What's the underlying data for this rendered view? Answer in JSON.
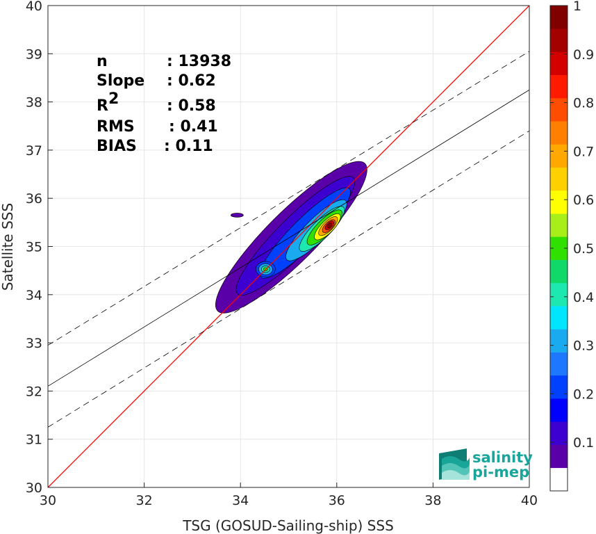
{
  "chart_data": {
    "type": "heatmap",
    "title": "",
    "xlabel": "TSG (GOSUD-Sailing-ship) SSS",
    "ylabel": "Satellite SSS",
    "xlim": [
      30,
      40
    ],
    "ylim": [
      30,
      40
    ],
    "xticks": [
      "30",
      "32",
      "34",
      "36",
      "38",
      "40"
    ],
    "yticks": [
      "30",
      "31",
      "32",
      "33",
      "34",
      "35",
      "36",
      "37",
      "38",
      "39",
      "40"
    ],
    "grid": true,
    "lines": [
      {
        "name": "1:1",
        "color": "#ff0000",
        "style": "solid",
        "points": [
          [
            30,
            30
          ],
          [
            40,
            40
          ]
        ]
      },
      {
        "name": "fit",
        "color": "#000000",
        "style": "solid",
        "points": [
          [
            30,
            32.1
          ],
          [
            40,
            38.25
          ]
        ]
      },
      {
        "name": "fit + 2 RMS",
        "color": "#000000",
        "style": "dashed",
        "points": [
          [
            30,
            32.95
          ],
          [
            40,
            39.05
          ]
        ]
      },
      {
        "name": "fit - 2 RMS",
        "color": "#000000",
        "style": "dashed",
        "points": [
          [
            30,
            31.25
          ],
          [
            40,
            37.4
          ]
        ]
      }
    ],
    "density_peaks": [
      {
        "x": 35.45,
        "y": 35.55,
        "level": 1.0
      },
      {
        "x": 34.55,
        "y": 34.5,
        "level": 0.5
      },
      {
        "x": 33.93,
        "y": 35.65,
        "level": 0.05
      }
    ],
    "stats": [
      {
        "label": "n",
        "value": ": 13938"
      },
      {
        "label": "Slope",
        "value": ": 0.62"
      },
      {
        "label": "R",
        "sup": "2",
        "value": ": 0.58"
      },
      {
        "label": "RMS",
        "value": ": 0.41"
      },
      {
        "label": "BIAS",
        "value": ": 0.11"
      }
    ],
    "colorbar": {
      "range": [
        0,
        1
      ],
      "tick_labels": [
        "0.1",
        "0.2",
        "0.3",
        "0.4",
        "0.5",
        "0.6",
        "0.7",
        "0.8",
        "0.9",
        "1"
      ],
      "tick_values": [
        0.1,
        0.2,
        0.3,
        0.4,
        0.5,
        0.6,
        0.7,
        0.8,
        0.9,
        1.0
      ],
      "colors": [
        "#ffffff",
        "#5a00a8",
        "#3c00d0",
        "#0000ff",
        "#0040ff",
        "#1e78ff",
        "#1aaaf0",
        "#00e6ff",
        "#1de8b0",
        "#10d96a",
        "#30e000",
        "#a8ef1a",
        "#ffff00",
        "#ffd000",
        "#ffa800",
        "#ff7f00",
        "#ff4d00",
        "#ff1a00",
        "#d40000",
        "#a30000",
        "#800000"
      ]
    }
  },
  "logo": {
    "line1": "salinity",
    "line2": "pi-mep",
    "color": "#1aa59a"
  }
}
